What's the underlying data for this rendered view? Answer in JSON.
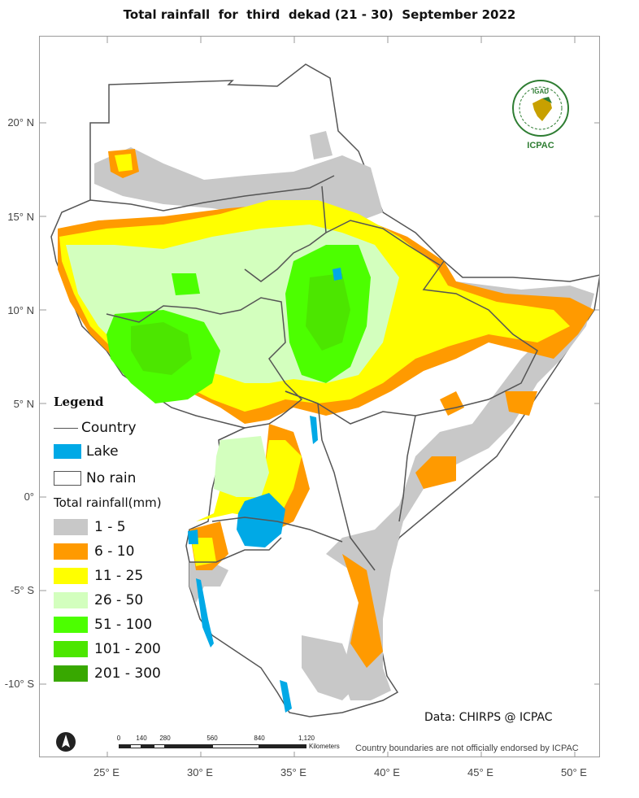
{
  "title": "Total rainfall  for  third  dekad (21 - 30)  September 2022",
  "lat_labels": [
    "20° N",
    "15° N",
    "10° N",
    "5° N",
    "0°",
    "-5° S",
    "-10° S"
  ],
  "lon_labels": [
    "25° E",
    "30° E",
    "35° E",
    "40° E",
    "45° E",
    "50° E"
  ],
  "legend": {
    "title": "Legend",
    "country": "Country",
    "lake": "Lake",
    "no_rain": "No rain",
    "rainfall_title": "Total rainfall(mm)",
    "classes": [
      {
        "label": "1 - 5",
        "color": "#c8c8c8"
      },
      {
        "label": "6 - 10",
        "color": "#ff9a00"
      },
      {
        "label": "11 - 25",
        "color": "#ffff00"
      },
      {
        "label": "26 - 50",
        "color": "#d3ffbe"
      },
      {
        "label": "51 - 100",
        "color": "#4cff00"
      },
      {
        "label": "101 - 200",
        "color": "#4ce600"
      },
      {
        "label": "201 - 300",
        "color": "#38a800"
      }
    ],
    "lake_color": "#00a9e6",
    "no_rain_color": "#ffffff"
  },
  "source": "Data: CHIRPS @ ICPAC",
  "disclaimer": "Country boundaries are not officially endorsed by ICPAC",
  "scale": {
    "ticks": [
      "0",
      "140",
      "280",
      "560",
      "840",
      "1,120"
    ],
    "unit": "Kilometers"
  },
  "logo": {
    "top": "IGAD",
    "bottom": "ICPAC",
    "icon": "igad-icpac-logo-icon"
  },
  "north_arrow_icon": "north-arrow-icon"
}
